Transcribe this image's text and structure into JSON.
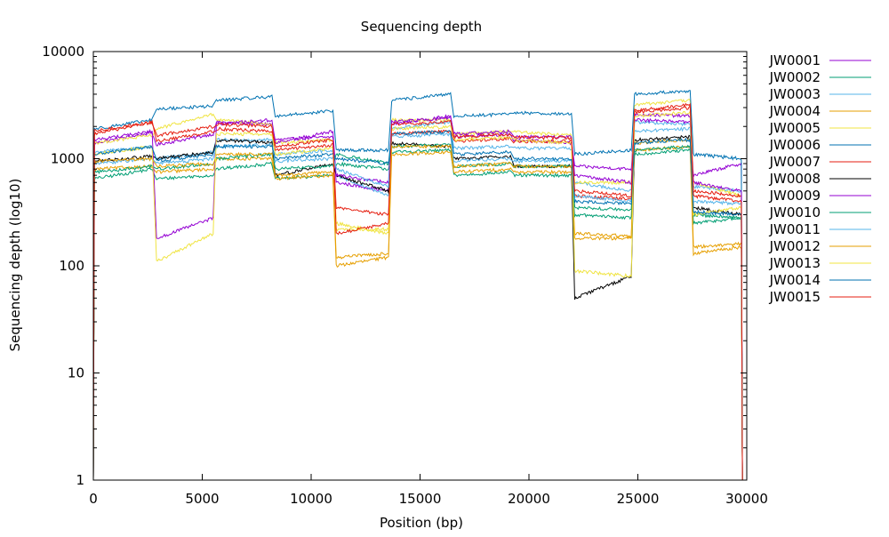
{
  "chart_data": {
    "type": "line",
    "title": "Sequencing depth",
    "xlabel": "Position (bp)",
    "ylabel": "Sequencing depth (log10)",
    "xlim": [
      0,
      30000
    ],
    "ylim": [
      1,
      10000
    ],
    "yscale": "log",
    "grid": false,
    "legend": "right",
    "xticks": [
      0,
      5000,
      10000,
      15000,
      20000,
      25000,
      30000
    ],
    "xtick_labels": [
      "0",
      "5000",
      "10000",
      "15000",
      "20000",
      "25000",
      "30000"
    ],
    "yticks": [
      1,
      10,
      100,
      1000,
      10000
    ],
    "ytick_labels": [
      "1",
      "10",
      "100",
      "1000",
      "10000"
    ],
    "x": [
      50,
      2700,
      2900,
      5500,
      5650,
      8200,
      8350,
      11000,
      11150,
      13550,
      13700,
      16400,
      16550,
      19150,
      19300,
      21950,
      22100,
      24700,
      24850,
      27400,
      27550,
      29750
    ],
    "series": [
      {
        "name": "JW0001",
        "color": "#9400d3",
        "values": [
          1400,
          1750,
          1350,
          1700,
          2200,
          2100,
          1500,
          1600,
          600,
          500,
          2100,
          2500,
          1600,
          1700,
          1500,
          1400,
          850,
          800,
          2600,
          2500,
          700,
          900
        ]
      },
      {
        "name": "JW0002",
        "color": "#009e73",
        "values": [
          650,
          800,
          650,
          700,
          800,
          900,
          650,
          700,
          900,
          800,
          1150,
          1200,
          700,
          750,
          700,
          700,
          300,
          280,
          1100,
          1200,
          250,
          280
        ]
      },
      {
        "name": "JW0003",
        "color": "#56b4e9",
        "values": [
          1150,
          1300,
          1000,
          1150,
          1500,
          1500,
          1100,
          1200,
          700,
          450,
          1900,
          2200,
          1250,
          1300,
          1250,
          1250,
          600,
          500,
          2200,
          2100,
          550,
          500
        ]
      },
      {
        "name": "JW0004",
        "color": "#e69f00",
        "values": [
          800,
          850,
          750,
          800,
          1000,
          1000,
          650,
          700,
          100,
          120,
          1100,
          1150,
          750,
          800,
          750,
          750,
          180,
          180,
          1200,
          1300,
          130,
          150
        ]
      },
      {
        "name": "JW0005",
        "color": "#f0e442",
        "values": [
          1400,
          1650,
          1900,
          2600,
          2300,
          2100,
          1400,
          1500,
          250,
          200,
          2300,
          2300,
          1700,
          1800,
          1800,
          1650,
          600,
          600,
          3200,
          3500,
          600,
          450
        ]
      },
      {
        "name": "JW0006",
        "color": "#0072b2",
        "values": [
          1900,
          2300,
          2900,
          3100,
          3500,
          3800,
          2500,
          2800,
          1200,
          1200,
          3500,
          4000,
          2500,
          2600,
          2700,
          2600,
          1100,
          1200,
          4000,
          4300,
          1100,
          1000
        ]
      },
      {
        "name": "JW0007",
        "color": "#e51e10",
        "values": [
          1800,
          2200,
          1450,
          1800,
          1900,
          1800,
          1200,
          1350,
          350,
          300,
          1700,
          1800,
          1450,
          1550,
          1450,
          1450,
          450,
          420,
          2800,
          3200,
          500,
          450
        ]
      },
      {
        "name": "JW0008",
        "color": "#000000",
        "values": [
          950,
          1050,
          1000,
          1150,
          1500,
          1400,
          700,
          900,
          700,
          500,
          1400,
          1300,
          1000,
          1050,
          850,
          850,
          50,
          80,
          1500,
          1600,
          350,
          300
        ]
      },
      {
        "name": "JW0009",
        "color": "#9400d3",
        "values": [
          1500,
          1800,
          180,
          280,
          2100,
          2300,
          1400,
          1800,
          700,
          600,
          2200,
          2400,
          1700,
          1800,
          1600,
          1600,
          700,
          600,
          2300,
          2200,
          600,
          500
        ]
      },
      {
        "name": "JW0010",
        "color": "#009e73",
        "values": [
          750,
          850,
          800,
          900,
          1000,
          1100,
          800,
          850,
          1100,
          900,
          1300,
          1350,
          850,
          900,
          850,
          850,
          350,
          330,
          1200,
          1300,
          300,
          280
        ]
      },
      {
        "name": "JW0011",
        "color": "#56b4e9",
        "values": [
          900,
          1000,
          900,
          1000,
          1300,
          1350,
          950,
          1000,
          800,
          550,
          1600,
          1700,
          950,
          1000,
          950,
          950,
          450,
          400,
          1800,
          1900,
          400,
          380
        ]
      },
      {
        "name": "JW0012",
        "color": "#e69f00",
        "values": [
          950,
          1000,
          850,
          900,
          1100,
          1100,
          700,
          750,
          120,
          130,
          1300,
          1300,
          850,
          900,
          850,
          850,
          200,
          190,
          1400,
          1500,
          150,
          160
        ]
      },
      {
        "name": "JW0013",
        "color": "#f0e442",
        "values": [
          1100,
          1300,
          110,
          200,
          1700,
          1700,
          1100,
          1250,
          220,
          220,
          1900,
          2000,
          1500,
          1600,
          1500,
          1400,
          90,
          80,
          2500,
          2700,
          300,
          350
        ]
      },
      {
        "name": "JW0014",
        "color": "#0072b2",
        "values": [
          1100,
          1300,
          950,
          1100,
          1300,
          1300,
          1000,
          1100,
          1000,
          900,
          1700,
          1800,
          1100,
          1150,
          1000,
          1000,
          400,
          380,
          1400,
          1500,
          320,
          300
        ]
      },
      {
        "name": "JW0015",
        "color": "#e51e10",
        "values": [
          1700,
          2200,
          1650,
          2000,
          2100,
          2000,
          1300,
          1500,
          200,
          250,
          2100,
          2200,
          1600,
          1700,
          1600,
          1550,
          500,
          450,
          2700,
          3000,
          450,
          400
        ]
      }
    ]
  }
}
